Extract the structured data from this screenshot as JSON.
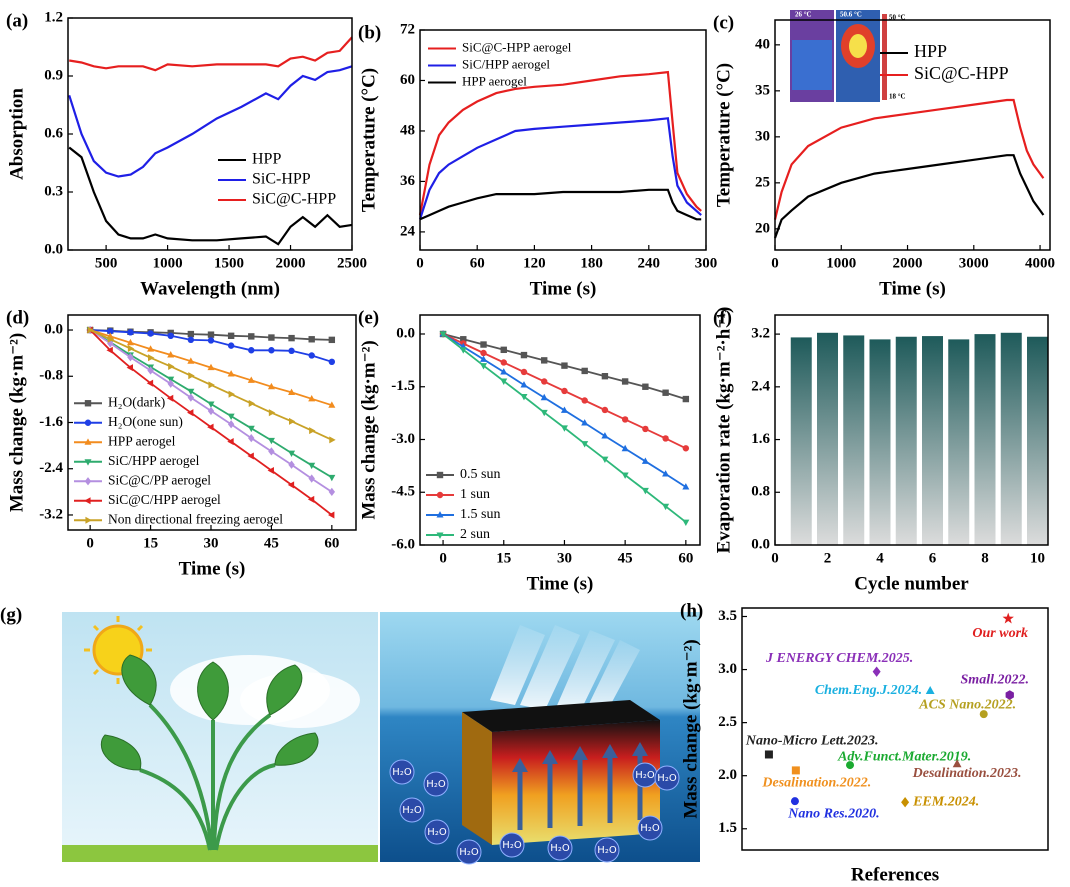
{
  "chart_data": [
    {
      "type": "line",
      "panel_label": "(a)",
      "xlabel": "Wavelength (nm)",
      "ylabel": "Absorption",
      "legend": "center-right",
      "x": [
        200,
        300,
        400,
        500,
        600,
        700,
        800,
        900,
        1000,
        1200,
        1400,
        1600,
        1800,
        1900,
        2000,
        2100,
        2200,
        2300,
        2400,
        2500
      ],
      "series": [
        {
          "name": "HPP",
          "color": "#000000",
          "values": [
            0.53,
            0.48,
            0.3,
            0.15,
            0.08,
            0.06,
            0.06,
            0.08,
            0.06,
            0.05,
            0.05,
            0.06,
            0.07,
            0.03,
            0.12,
            0.17,
            0.12,
            0.18,
            0.12,
            0.13
          ]
        },
        {
          "name": "SiC-HPP",
          "color": "#1f1fe6",
          "values": [
            0.8,
            0.6,
            0.46,
            0.4,
            0.38,
            0.39,
            0.43,
            0.5,
            0.53,
            0.6,
            0.68,
            0.74,
            0.81,
            0.78,
            0.85,
            0.9,
            0.88,
            0.92,
            0.93,
            0.95
          ]
        },
        {
          "name": "SiC@C-HPP",
          "color": "#e61f1f",
          "values": [
            0.98,
            0.97,
            0.95,
            0.94,
            0.95,
            0.95,
            0.95,
            0.93,
            0.96,
            0.95,
            0.96,
            0.96,
            0.96,
            0.95,
            0.99,
            1.0,
            0.98,
            1.02,
            1.03,
            1.1
          ]
        }
      ],
      "xlim": [
        190,
        2500
      ],
      "xticks": [
        500,
        1000,
        1500,
        2000,
        2500
      ],
      "ylim": [
        0,
        1.2
      ],
      "yticks": [
        {
          "value": 0,
          "label": "0.0"
        },
        0.3,
        0.6,
        0.9,
        1.2
      ]
    },
    {
      "type": "line",
      "panel_label": "(b)",
      "xlabel": "Time (s)",
      "ylabel": "Temperature (°C)",
      "legend": "upper-left",
      "x": [
        0,
        10,
        20,
        30,
        45,
        60,
        80,
        100,
        120,
        150,
        180,
        210,
        240,
        260,
        265,
        270,
        280,
        290,
        295
      ],
      "series": [
        {
          "name": "SiC@C-HPP aerogel",
          "color": "#e61f1f",
          "values": [
            28,
            40,
            47,
            50,
            53,
            55,
            57,
            58,
            58.5,
            59,
            60,
            61,
            61.5,
            62,
            50,
            38,
            33,
            30,
            29
          ]
        },
        {
          "name": "SiC/HPP aerogel",
          "color": "#1f1fe6",
          "values": [
            27,
            34,
            38,
            40,
            42,
            44,
            46,
            48,
            48.5,
            49,
            49.5,
            50,
            50.5,
            51,
            42,
            35,
            31,
            29,
            28
          ]
        },
        {
          "name": "HPP aerogel",
          "color": "#000000",
          "values": [
            27,
            28,
            29,
            30,
            31,
            32,
            33,
            33,
            33,
            33.5,
            33.5,
            33.5,
            34,
            34,
            31,
            29,
            28,
            27,
            27
          ]
        }
      ],
      "xlim": [
        0,
        300
      ],
      "xticks": [
        0,
        60,
        120,
        180,
        240,
        300
      ],
      "ylim": [
        19.7,
        72
      ],
      "yticks": [
        24,
        36,
        48,
        60,
        72
      ]
    },
    {
      "type": "line",
      "panel_label": "(c)",
      "xlabel": "Time (s)",
      "ylabel": "Temperature (°C)",
      "legend": "upper-right",
      "inset_labels": [
        "26 °C",
        "50.6 °C",
        "50 °C",
        "18 °C"
      ],
      "x": [
        0,
        100,
        250,
        500,
        1000,
        1500,
        2000,
        2500,
        3000,
        3500,
        3600,
        3700,
        3800,
        3900,
        4000,
        4050
      ],
      "series": [
        {
          "name": "HPP",
          "color": "#000000",
          "values": [
            19,
            21,
            22,
            23.5,
            25,
            26,
            26.5,
            27,
            27.5,
            28,
            28,
            26,
            24.5,
            23,
            22,
            21.5
          ]
        },
        {
          "name": "SiC@C-HPP",
          "color": "#e61f1f",
          "values": [
            21,
            24,
            27,
            29,
            31,
            32,
            32.5,
            33,
            33.5,
            34,
            34,
            31,
            28.5,
            27,
            26,
            25.5
          ]
        }
      ],
      "xlim": [
        0,
        4150
      ],
      "xticks": [
        0,
        1000,
        2000,
        3000,
        4000
      ],
      "ylim": [
        17.7,
        42.7
      ],
      "yticks": [
        20,
        25,
        30,
        35,
        40
      ]
    },
    {
      "type": "line",
      "panel_label": "(d)",
      "xlabel": "Time (s)",
      "ylabel": "Mass change (kg·m⁻²)",
      "legend": "lower-left",
      "markers": true,
      "x": [
        0,
        5,
        10,
        15,
        20,
        25,
        30,
        35,
        40,
        45,
        50,
        55,
        60
      ],
      "series": [
        {
          "name": "H₂O(dark)",
          "color": "#555555",
          "marker": "square",
          "values": [
            0,
            -0.01,
            -0.03,
            -0.04,
            -0.05,
            -0.07,
            -0.08,
            -0.1,
            -0.11,
            -0.13,
            -0.14,
            -0.16,
            -0.17
          ]
        },
        {
          "name": "H₂O(one sun)",
          "color": "#1f3fe6",
          "marker": "circle",
          "values": [
            0,
            -0.02,
            -0.04,
            -0.06,
            -0.1,
            -0.17,
            -0.18,
            -0.27,
            -0.35,
            -0.35,
            -0.36,
            -0.44,
            -0.55
          ]
        },
        {
          "name": "HPP aerogel",
          "color": "#f28c1e",
          "marker": "triangle",
          "values": [
            0,
            -0.11,
            -0.22,
            -0.33,
            -0.43,
            -0.54,
            -0.65,
            -0.76,
            -0.87,
            -0.98,
            -1.08,
            -1.19,
            -1.3
          ]
        },
        {
          "name": "SiC/HPP aerogel",
          "color": "#2eab6e",
          "marker": "down-triangle",
          "values": [
            0,
            -0.21,
            -0.43,
            -0.64,
            -0.85,
            -1.06,
            -1.28,
            -1.49,
            -1.7,
            -1.91,
            -2.13,
            -2.34,
            -2.55
          ]
        },
        {
          "name": "SiC@C/PP aerogel",
          "color": "#b48fe0",
          "marker": "diamond",
          "values": [
            0,
            -0.23,
            -0.47,
            -0.7,
            -0.93,
            -1.17,
            -1.4,
            -1.63,
            -1.87,
            -2.1,
            -2.33,
            -2.57,
            -2.8
          ]
        },
        {
          "name": "SiC@C/HPP aerogel",
          "color": "#e02020",
          "marker": "left-triangle",
          "values": [
            0,
            -0.35,
            -0.65,
            -0.92,
            -1.18,
            -1.43,
            -1.68,
            -1.93,
            -2.18,
            -2.43,
            -2.68,
            -2.93,
            -3.2
          ]
        },
        {
          "name": "Non directional freezing aerogel",
          "color": "#c9a227",
          "marker": "right-triangle",
          "values": [
            0,
            -0.16,
            -0.32,
            -0.48,
            -0.63,
            -0.79,
            -0.95,
            -1.11,
            -1.27,
            -1.43,
            -1.58,
            -1.74,
            -1.9
          ]
        }
      ],
      "xlim": [
        -5.5,
        66
      ],
      "xticks": [
        0,
        15,
        30,
        45,
        60
      ],
      "ylim": [
        -3.46,
        0.26
      ],
      "yticks": [
        {
          "value": 0,
          "label": "0.0"
        },
        -0.8,
        -1.6,
        -2.4,
        -3.2
      ]
    },
    {
      "type": "line",
      "panel_label": "(e)",
      "xlabel": "Time (s)",
      "ylabel": "Mass change (kg·m⁻²)",
      "legend": "lower-left",
      "markers": true,
      "x": [
        0,
        5,
        10,
        15,
        20,
        25,
        30,
        35,
        40,
        45,
        50,
        55,
        60
      ],
      "series": [
        {
          "name": "0.5 sun",
          "color": "#555555",
          "marker": "square",
          "values": [
            0,
            -0.15,
            -0.3,
            -0.45,
            -0.6,
            -0.75,
            -0.9,
            -1.05,
            -1.2,
            -1.35,
            -1.5,
            -1.67,
            -1.85
          ]
        },
        {
          "name": "1 sun",
          "color": "#e63b3b",
          "marker": "circle",
          "values": [
            0,
            -0.27,
            -0.54,
            -0.81,
            -1.08,
            -1.35,
            -1.62,
            -1.89,
            -2.16,
            -2.43,
            -2.7,
            -2.97,
            -3.25
          ]
        },
        {
          "name": "1.5 sun",
          "color": "#1f6fe0",
          "marker": "triangle",
          "values": [
            0,
            -0.36,
            -0.72,
            -1.08,
            -1.45,
            -1.81,
            -2.17,
            -2.53,
            -2.9,
            -3.26,
            -3.62,
            -3.98,
            -4.35
          ]
        },
        {
          "name": "2 sun",
          "color": "#2eb87a",
          "marker": "down-triangle",
          "values": [
            0,
            -0.45,
            -0.9,
            -1.34,
            -1.78,
            -2.23,
            -2.67,
            -3.12,
            -3.56,
            -4.01,
            -4.45,
            -4.9,
            -5.35
          ]
        }
      ],
      "xlim": [
        -5.7,
        63.5
      ],
      "xticks": [
        0,
        15,
        30,
        45,
        60
      ],
      "ylim": [
        -6,
        0.54
      ],
      "yticks": [
        {
          "value": 0,
          "label": "0.0"
        },
        -1.5,
        {
          "value": -3,
          "label": "-3.0"
        },
        -4.5,
        {
          "value": -6,
          "label": "-6.0"
        }
      ]
    },
    {
      "type": "bar",
      "panel_label": "(f)",
      "xlabel": "Cycle number",
      "ylabel": "Evaporation rate (kg·m⁻²·h⁻¹)",
      "color": "#1e5a5a",
      "x": [
        1,
        2,
        3,
        4,
        5,
        6,
        7,
        8,
        9,
        10
      ],
      "values": [
        3.15,
        3.22,
        3.18,
        3.12,
        3.16,
        3.17,
        3.12,
        3.2,
        3.22,
        3.16
      ],
      "xlim": [
        0,
        10.4
      ],
      "xticks": [
        0,
        2,
        4,
        6,
        8,
        10
      ],
      "ylim": [
        0,
        3.49
      ],
      "yticks": [
        {
          "value": 0,
          "label": "0.0"
        },
        0.8,
        1.6,
        2.4,
        3.2
      ]
    },
    {
      "type": "illustration",
      "panel_label": "(g)",
      "molecule_labels": [
        "H₂O",
        "H₂O",
        "H₂O",
        "H₂O",
        "H₂O",
        "H₂O",
        "H₂O",
        "H₂O",
        "H₂O",
        "H₂O",
        "H₂O"
      ]
    },
    {
      "type": "scatter",
      "panel_label": "(h)",
      "xlabel": "References",
      "ylabel": "Mass change (kg·m⁻²)",
      "points": [
        {
          "label": "Our work",
          "color": "#e02020",
          "marker": "star",
          "x": 8.7,
          "y": 3.48
        },
        {
          "label": "J ENERGY CHEM.2025.",
          "color": "#8a2fb8",
          "marker": "diamond",
          "x": 4.4,
          "y": 2.98
        },
        {
          "label": "Small.2022.",
          "color": "#7a1fa2",
          "marker": "hexagon",
          "x": 8.75,
          "y": 2.76
        },
        {
          "label": "Chem.Eng.J.2024.",
          "color": "#1ab0e0",
          "marker": "triangle",
          "x": 6.15,
          "y": 2.8
        },
        {
          "label": "ACS Nano.2022.",
          "color": "#b5a020",
          "marker": "circle",
          "x": 7.9,
          "y": 2.58
        },
        {
          "label": "Nano-Micro Lett.2023.",
          "color": "#222222",
          "marker": "square",
          "x": 0.88,
          "y": 2.2
        },
        {
          "label": "Adv.Funct.Mater.2019.",
          "color": "#1aaa30",
          "marker": "circle",
          "x": 3.53,
          "y": 2.1
        },
        {
          "label": "Desalination.2023.",
          "color": "#9a5040",
          "marker": "triangle",
          "x": 7.03,
          "y": 2.11
        },
        {
          "label": "Desalination.2022.",
          "color": "#f0901e",
          "marker": "square",
          "x": 1.76,
          "y": 2.05
        },
        {
          "label": "EEM.2024.",
          "color": "#c89000",
          "marker": "diamond",
          "x": 5.33,
          "y": 1.75
        },
        {
          "label": "Nano Res.2020.",
          "color": "#2030e0",
          "marker": "circle",
          "x": 1.73,
          "y": 1.76
        }
      ],
      "xlim": [
        0,
        10
      ],
      "ylim": [
        1.3,
        3.58
      ],
      "yticks": [
        1.5,
        {
          "value": 2,
          "label": "2.0"
        },
        2.5,
        {
          "value": 3,
          "label": "3.0"
        },
        3.5
      ]
    }
  ]
}
